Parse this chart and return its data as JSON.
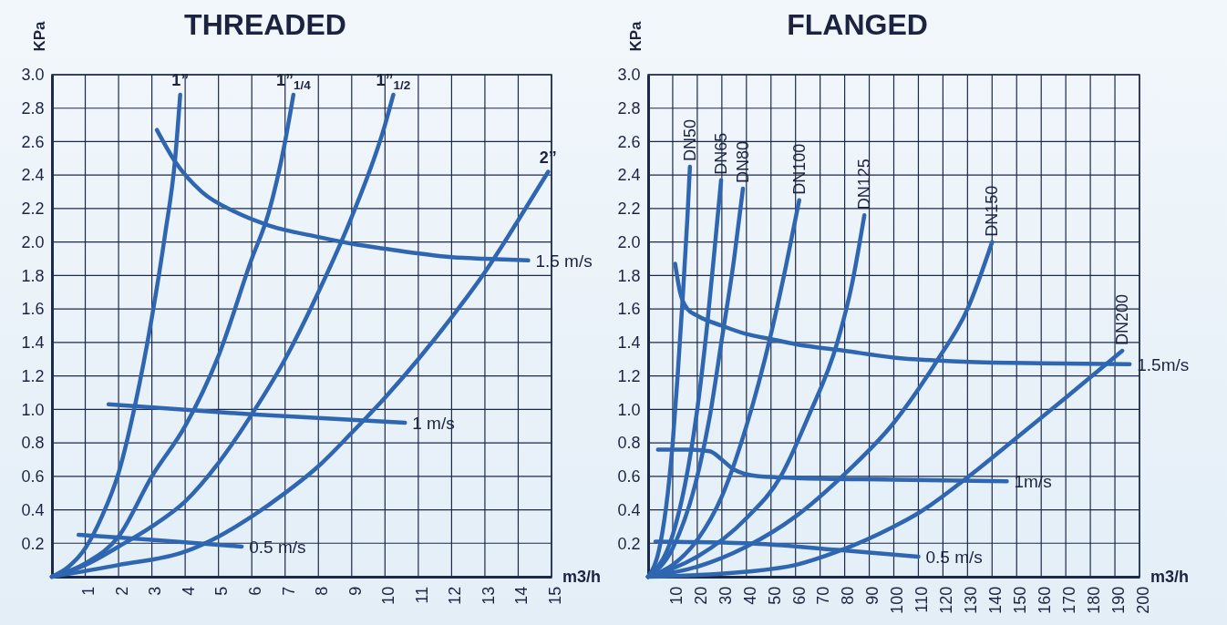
{
  "chart_data": [
    {
      "type": "line",
      "title": "THREADED",
      "xlabel": "m3/h",
      "ylabel": "KPa",
      "xlim": [
        0,
        15
      ],
      "ylim": [
        0,
        3
      ],
      "xticks": [
        1,
        2,
        3,
        4,
        5,
        6,
        7,
        8,
        9,
        10,
        11,
        12,
        13,
        14,
        15
      ],
      "yticks": [
        0.2,
        0.4,
        0.6,
        0.8,
        {
          "value": 1,
          "label": "1.0"
        },
        1.2,
        1.4,
        1.6,
        1.8,
        {
          "value": 2,
          "label": "2.0"
        },
        2.2,
        2.4,
        2.6,
        2.8,
        {
          "value": 3,
          "label": "3.0"
        }
      ],
      "grid": true,
      "series": [
        {
          "name": "1”",
          "color": "#2f66b1",
          "x": [
            0,
            0.5,
            1,
            1.5,
            2,
            2.5,
            3,
            3.4,
            3.7,
            3.85
          ],
          "values": [
            0,
            0.06,
            0.17,
            0.36,
            0.62,
            1.03,
            1.55,
            2.05,
            2.5,
            2.88
          ]
        },
        {
          "name": "1”$_{1/4}$",
          "color": "#2f66b1",
          "x": [
            0,
            1,
            2,
            3,
            4,
            5,
            6,
            6.5,
            7,
            7.25
          ],
          "values": [
            0,
            0.08,
            0.24,
            0.6,
            0.9,
            1.32,
            1.9,
            2.17,
            2.6,
            2.88
          ]
        },
        {
          "name": "1”$_{1/2}$",
          "color": "#2f66b1",
          "x": [
            0,
            1,
            2,
            3,
            4,
            5,
            6,
            7,
            8,
            9,
            10,
            10.25
          ],
          "values": [
            0,
            0.07,
            0.18,
            0.3,
            0.45,
            0.68,
            0.97,
            1.3,
            1.7,
            2.15,
            2.7,
            2.88
          ]
        },
        {
          "name": "2”",
          "color": "#2f66b1",
          "x": [
            0,
            2,
            4,
            5,
            6,
            7,
            8,
            9,
            10,
            11,
            12,
            13,
            14,
            14.9
          ],
          "values": [
            0,
            0.07,
            0.15,
            0.24,
            0.36,
            0.5,
            0.66,
            0.86,
            1.07,
            1.3,
            1.55,
            1.82,
            2.13,
            2.42
          ]
        },
        {
          "name": "1.5 m/s",
          "color": "#2f66b1",
          "x": [
            3.15,
            3.7,
            4.5,
            5.5,
            6.5,
            8,
            9,
            10,
            12,
            13,
            14.3
          ],
          "values": [
            2.67,
            2.48,
            2.3,
            2.18,
            2.1,
            2.03,
            1.99,
            1.96,
            1.91,
            1.9,
            1.89
          ]
        },
        {
          "name": "1 m/s",
          "color": "#2f66b1",
          "x": [
            1.7,
            6,
            10.6
          ],
          "values": [
            1.03,
            0.97,
            0.92
          ]
        },
        {
          "name": "0.5 m/s",
          "color": "#2f66b1",
          "x": [
            0.8,
            3,
            5.7
          ],
          "values": [
            0.25,
            0.22,
            0.18
          ]
        }
      ]
    },
    {
      "type": "line",
      "title": "FLANGED",
      "xlabel": "m3/h",
      "ylabel": "KPa",
      "xlim": [
        0,
        200
      ],
      "ylim": [
        0,
        3
      ],
      "xticks": [
        10,
        20,
        30,
        40,
        50,
        60,
        70,
        80,
        90,
        100,
        110,
        120,
        130,
        140,
        150,
        160,
        170,
        180,
        190,
        200
      ],
      "yticks": [
        0.2,
        0.4,
        0.6,
        0.8,
        {
          "value": 1,
          "label": "1.0"
        },
        1.2,
        1.4,
        1.6,
        1.8,
        {
          "value": 2,
          "label": "2.0"
        },
        2.2,
        2.4,
        2.6,
        2.8,
        {
          "value": 3,
          "label": "3.0"
        }
      ],
      "grid": true,
      "series": [
        {
          "name": "DN50",
          "color": "#2f66b1",
          "x": [
            0,
            5,
            8,
            10,
            12,
            14,
            16,
            17
          ],
          "values": [
            0,
            0.2,
            0.5,
            0.8,
            1.2,
            1.65,
            2.15,
            2.45
          ]
        },
        {
          "name": "DN65",
          "color": "#2f66b1",
          "x": [
            0,
            10,
            15,
            20,
            24,
            27,
            29.7
          ],
          "values": [
            0,
            0.25,
            0.55,
            1.0,
            1.5,
            1.95,
            2.37
          ]
        },
        {
          "name": "DN80",
          "color": "#2f66b1",
          "x": [
            0,
            10,
            20,
            25,
            30,
            35,
            38.6
          ],
          "values": [
            0,
            0.17,
            0.6,
            0.95,
            1.42,
            1.9,
            2.32
          ]
        },
        {
          "name": "DN100",
          "color": "#2f66b1",
          "x": [
            0,
            10,
            20,
            30,
            40,
            50,
            56,
            61.5
          ],
          "values": [
            0,
            0.07,
            0.22,
            0.48,
            0.9,
            1.45,
            1.85,
            2.25
          ]
        },
        {
          "name": "DN125",
          "color": "#2f66b1",
          "x": [
            0,
            20,
            40,
            54,
            65,
            77,
            83,
            88
          ],
          "values": [
            0,
            0.12,
            0.35,
            0.6,
            0.95,
            1.4,
            1.75,
            2.16
          ]
        },
        {
          "name": "DN150",
          "color": "#2f66b1",
          "x": [
            0,
            20,
            40,
            60,
            79,
            100,
            118,
            130,
            140
          ],
          "values": [
            0,
            0.06,
            0.18,
            0.36,
            0.6,
            0.92,
            1.3,
            1.6,
            2.0
          ]
        },
        {
          "name": "DN200",
          "color": "#2f66b1",
          "x": [
            0,
            40,
            60,
            77,
            100,
            110,
            128.8,
            150,
            170,
            193
          ],
          "values": [
            0,
            0.03,
            0.07,
            0.15,
            0.3,
            0.38,
            0.58,
            0.83,
            1.07,
            1.35
          ]
        },
        {
          "name": "1.5m/s",
          "color": "#2f66b1",
          "x": [
            11,
            13,
            16,
            20,
            30,
            40,
            50,
            60,
            80,
            100,
            120,
            140,
            160,
            196
          ],
          "values": [
            1.87,
            1.7,
            1.6,
            1.56,
            1.5,
            1.45,
            1.42,
            1.39,
            1.35,
            1.31,
            1.29,
            1.28,
            1.275,
            1.27
          ]
        },
        {
          "name": "1m/s",
          "color": "#2f66b1",
          "x": [
            4,
            15,
            25,
            30,
            35,
            45,
            60,
            100,
            146
          ],
          "values": [
            0.76,
            0.76,
            0.75,
            0.7,
            0.64,
            0.6,
            0.59,
            0.58,
            0.57
          ]
        },
        {
          "name": "0.5 m/s",
          "color": "#2f66b1",
          "x": [
            3,
            40,
            77,
            110
          ],
          "values": [
            0.21,
            0.2,
            0.16,
            0.12
          ]
        }
      ]
    }
  ]
}
